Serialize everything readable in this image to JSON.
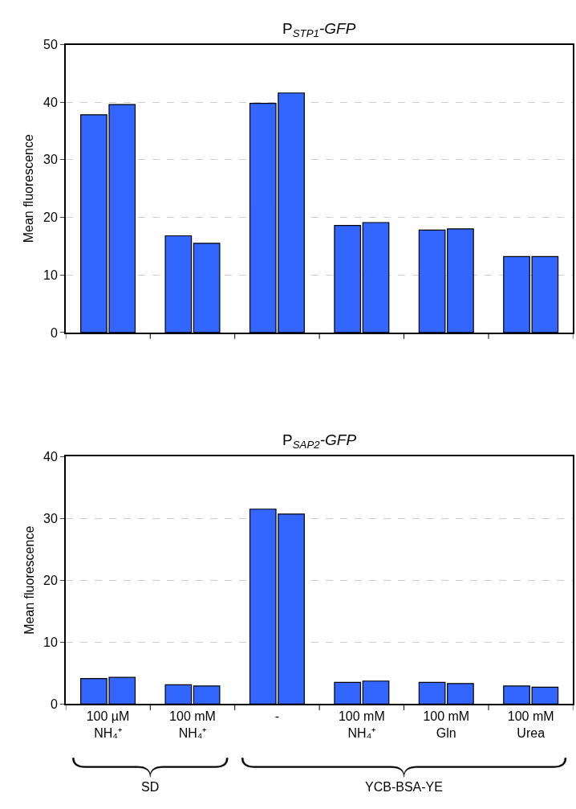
{
  "chart_data": [
    {
      "type": "bar",
      "title": "P$_{STP1}$-GFP",
      "ylabel": "Mean fluorescence",
      "categories": [
        null,
        null,
        null,
        null,
        null,
        null
      ],
      "series": [
        {
          "color": "#3366ff",
          "values": [
            37.8,
            16.8,
            39.8,
            18.6,
            17.8,
            13.2
          ]
        },
        {
          "color": "#3366ff",
          "values": [
            39.6,
            15.5,
            41.6,
            19.1,
            18.0,
            13.2
          ]
        }
      ],
      "ylim": [
        0,
        50
      ],
      "yticks": [
        0,
        10,
        20,
        30,
        40,
        50
      ],
      "grid": "y",
      "tick_labels": "y"
    },
    {
      "type": "bar",
      "title": "P$_{SAP2}$-GFP",
      "ylabel": "Mean fluorescence",
      "categories": [
        "100 µM\nNH₄⁺",
        "100 mM\nNH₄⁺",
        "-",
        "100 mM\nNH₄⁺",
        "100 mM\nGln",
        "100 mM\nUrea"
      ],
      "series": [
        {
          "color": "#3366ff",
          "values": [
            4.1,
            3.1,
            31.5,
            3.5,
            3.5,
            2.9
          ]
        },
        {
          "color": "#3366ff",
          "values": [
            4.3,
            2.9,
            30.7,
            3.7,
            3.3,
            2.7
          ]
        }
      ],
      "ylim": [
        0,
        40
      ],
      "yticks": [
        0,
        10,
        20,
        30,
        40
      ],
      "grid": "y",
      "annotations": [
        "SD",
        "YCB-BSA-YE"
      ]
    }
  ]
}
